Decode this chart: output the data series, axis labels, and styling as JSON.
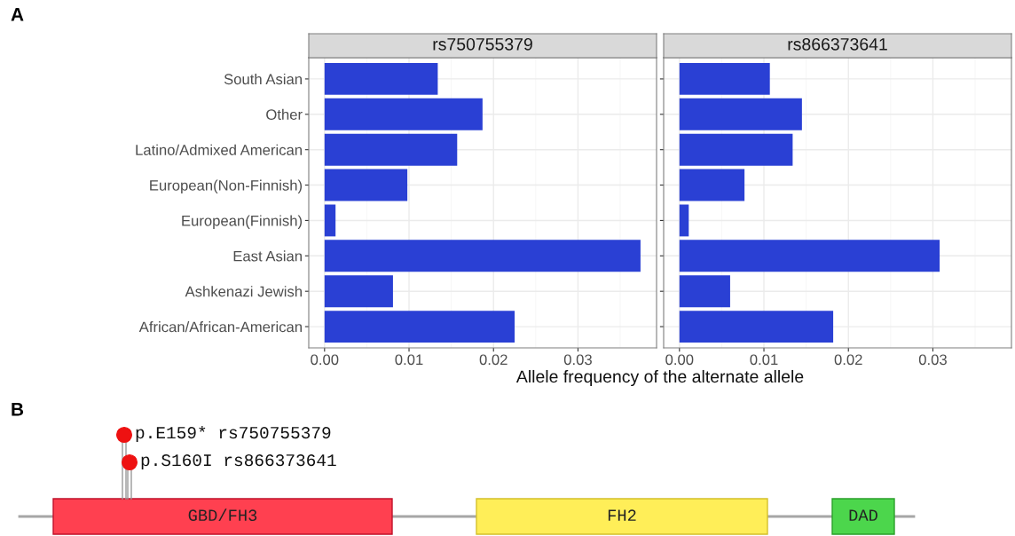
{
  "chart_data": [
    {
      "type": "bar",
      "orientation": "horizontal",
      "title": "rs750755379",
      "xlabel": "Allele frequency of the alternate allele",
      "annotations": [
        "A"
      ],
      "categories": [
        "South Asian",
        "Other",
        "Latino/Admixed American",
        "European(Non-Finnish)",
        "European(Finnish)",
        "East Asian",
        "Ashkenazi Jewish",
        "African/African-American"
      ],
      "series": [
        {
          "color": "#2a40d4",
          "values": [
            0.0134,
            0.0187,
            0.0157,
            0.0098,
            0.0013,
            0.0374,
            0.0081,
            0.0225
          ]
        }
      ],
      "xlim": [
        -0.00187,
        0.0393
      ],
      "xticks": [
        {
          "value": 0,
          "label": "0.00"
        },
        {
          "value": 0.01,
          "label": "0.01"
        },
        {
          "value": 0.02,
          "label": "0.02"
        },
        {
          "value": 0.03,
          "label": "0.03"
        }
      ],
      "grid": true
    },
    {
      "type": "bar",
      "orientation": "horizontal",
      "title": "rs866373641",
      "tick_labels": "x",
      "categories": [
        null,
        null,
        null,
        null,
        null,
        null,
        null,
        null
      ],
      "series": [
        {
          "color": "#2a40d4",
          "values": [
            0.0107,
            0.0145,
            0.0134,
            0.0077,
            0.0011,
            0.0308,
            0.006,
            0.0182
          ]
        }
      ],
      "xlim": [
        -0.00187,
        0.0393
      ],
      "xticks": [
        {
          "value": 0,
          "label": "0.00"
        },
        {
          "value": 0.01,
          "label": "0.01"
        },
        {
          "value": 0.02,
          "label": "0.02"
        },
        {
          "value": 0.03,
          "label": "0.03"
        }
      ],
      "grid": true
    },
    {
      "type": "other",
      "title": "B",
      "annotations": [
        "p.E159* rs750755379",
        "p.S160I rs866373641",
        "GBD/FH3",
        "FH2",
        "DAD"
      ],
      "colors": [
        "#ff4050",
        "#ffee58",
        "#4cd64c"
      ]
    }
  ]
}
